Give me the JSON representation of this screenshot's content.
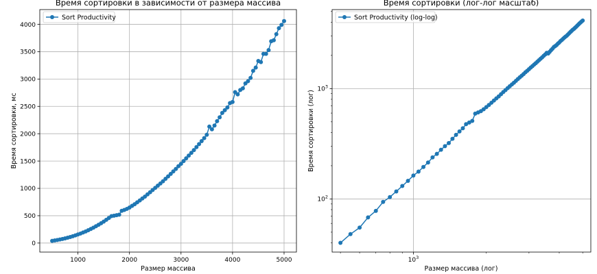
{
  "chart_data": [
    {
      "type": "line",
      "title": "Время сортировки в зависимости от размера массива",
      "xlabel": "Размер массива",
      "ylabel": "Время сортировки, мс",
      "xlim": [
        260,
        5240
      ],
      "ylim": [
        -165,
        4270
      ],
      "xticks": [
        1000,
        2000,
        3000,
        4000,
        5000
      ],
      "yticks": [
        0,
        500,
        1000,
        1500,
        2000,
        2500,
        3000,
        3500,
        4000
      ],
      "grid": true,
      "legend_position": "top-left",
      "series": [
        {
          "name": "Sort Productivity",
          "color": "#1f77b4",
          "marker": "circle",
          "x": [
            500,
            550,
            600,
            650,
            700,
            750,
            800,
            850,
            900,
            950,
            1000,
            1050,
            1100,
            1150,
            1200,
            1250,
            1300,
            1350,
            1400,
            1450,
            1500,
            1550,
            1600,
            1650,
            1700,
            1750,
            1800,
            1850,
            1900,
            1950,
            2000,
            2050,
            2100,
            2150,
            2200,
            2250,
            2300,
            2350,
            2400,
            2450,
            2500,
            2550,
            2600,
            2650,
            2700,
            2750,
            2800,
            2850,
            2900,
            2950,
            3000,
            3050,
            3100,
            3150,
            3200,
            3250,
            3300,
            3350,
            3400,
            3450,
            3500,
            3550,
            3600,
            3650,
            3700,
            3750,
            3800,
            3850,
            3900,
            3950,
            4000,
            4050,
            4100,
            4150,
            4200,
            4250,
            4300,
            4350,
            4400,
            4450,
            4500,
            4550,
            4600,
            4650,
            4700,
            4750,
            4800,
            4850,
            4900,
            4950,
            5000
          ],
          "y": [
            40,
            48,
            56,
            65,
            75,
            86,
            98,
            111,
            125,
            140,
            157,
            174,
            193,
            213,
            235,
            258,
            282,
            308,
            335,
            363,
            393,
            425,
            458,
            492,
            500,
            510,
            520,
            590,
            605,
            625,
            650,
            680,
            710,
            745,
            780,
            815,
            850,
            890,
            930,
            970,
            1010,
            1050,
            1090,
            1130,
            1175,
            1220,
            1265,
            1310,
            1355,
            1405,
            1450,
            1500,
            1550,
            1600,
            1650,
            1700,
            1755,
            1810,
            1865,
            1920,
            1980,
            2130,
            2080,
            2150,
            2230,
            2300,
            2380,
            2430,
            2480,
            2560,
            2580,
            2760,
            2720,
            2800,
            2830,
            2920,
            2960,
            3020,
            3150,
            3210,
            3330,
            3310,
            3460,
            3460,
            3530,
            3690,
            3710,
            3820,
            3930,
            3990,
            4060
          ]
        }
      ]
    },
    {
      "type": "line",
      "title": "Время сортировки (лог-лог масштаб)",
      "xlabel": "Размер массива (лог)",
      "ylabel": "Время сортировки (лог)",
      "xscale": "log",
      "yscale": "log",
      "xlim": [
        462,
        5400
      ],
      "ylim": [
        33,
        5200
      ],
      "xtick_values": [
        1000
      ],
      "xtick_labels": [
        "10^3"
      ],
      "ytick_values": [
        100,
        1000
      ],
      "ytick_labels": [
        "10^2",
        "10^3"
      ],
      "grid": true,
      "legend_position": "top-left",
      "series": [
        {
          "name": "Sort Productivity (log-log)",
          "color": "#1f77b4",
          "marker": "circle",
          "x": [
            500,
            550,
            600,
            650,
            700,
            750,
            800,
            850,
            900,
            950,
            1000,
            1050,
            1100,
            1150,
            1200,
            1250,
            1300,
            1350,
            1400,
            1450,
            1500,
            1550,
            1600,
            1650,
            1700,
            1750,
            1800,
            1850,
            1900,
            1950,
            2000,
            2050,
            2100,
            2150,
            2200,
            2250,
            2300,
            2350,
            2400,
            2450,
            2500,
            2550,
            2600,
            2650,
            2700,
            2750,
            2800,
            2850,
            2900,
            2950,
            3000,
            3050,
            3100,
            3150,
            3200,
            3250,
            3300,
            3350,
            3400,
            3450,
            3500,
            3550,
            3600,
            3650,
            3700,
            3750,
            3800,
            3850,
            3900,
            3950,
            4000,
            4050,
            4100,
            4150,
            4200,
            4250,
            4300,
            4350,
            4400,
            4450,
            4500,
            4550,
            4600,
            4650,
            4700,
            4750,
            4800,
            4850,
            4900,
            4950,
            5000
          ],
          "y": [
            40,
            48,
            55,
            68,
            78,
            94,
            104,
            117,
            131,
            146,
            163,
            177,
            195,
            214,
            238,
            256,
            279,
            301,
            321,
            351,
            381,
            409,
            437,
            476,
            493,
            510,
            593,
            608,
            625,
            650,
            680,
            710,
            745,
            780,
            815,
            850,
            890,
            930,
            970,
            1010,
            1050,
            1090,
            1130,
            1175,
            1220,
            1265,
            1310,
            1355,
            1405,
            1450,
            1500,
            1550,
            1600,
            1650,
            1700,
            1755,
            1810,
            1865,
            1920,
            1980,
            2040,
            2110,
            2080,
            2150,
            2230,
            2300,
            2380,
            2430,
            2480,
            2560,
            2620,
            2700,
            2760,
            2830,
            2900,
            2960,
            3020,
            3100,
            3180,
            3260,
            3340,
            3420,
            3480,
            3560,
            3640,
            3720,
            3810,
            3900,
            3980,
            4060,
            4140
          ]
        }
      ]
    }
  ]
}
